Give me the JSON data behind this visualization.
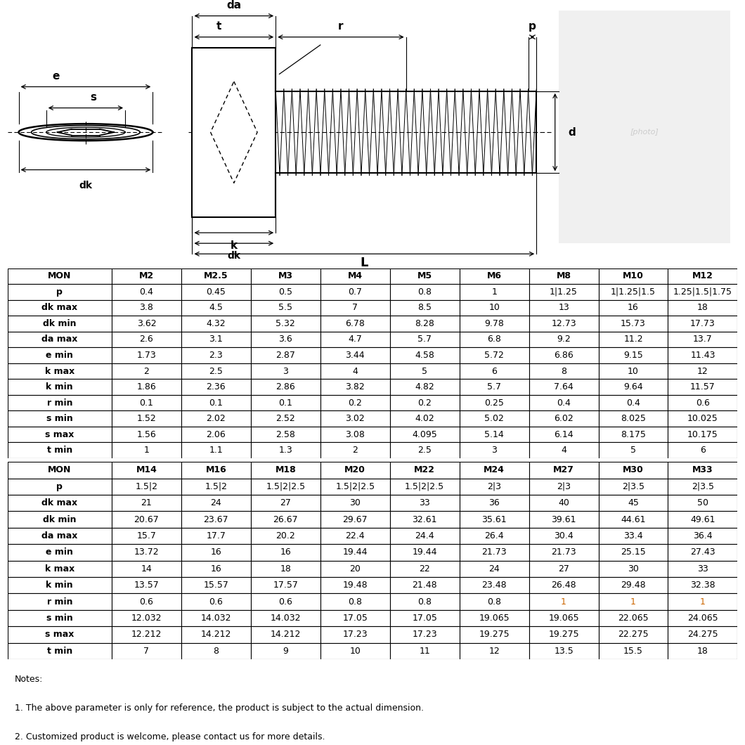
{
  "table1_headers": [
    "MON",
    "M2",
    "M2.5",
    "M3",
    "M4",
    "M5",
    "M6",
    "M8",
    "M10",
    "M12"
  ],
  "table1_rows": [
    [
      "p",
      "0.4",
      "0.45",
      "0.5",
      "0.7",
      "0.8",
      "1",
      "1|1.25",
      "1|1.25|1.5",
      "1.25|1.5|1.75"
    ],
    [
      "dk max",
      "3.8",
      "4.5",
      "5.5",
      "7",
      "8.5",
      "10",
      "13",
      "16",
      "18"
    ],
    [
      "dk min",
      "3.62",
      "4.32",
      "5.32",
      "6.78",
      "8.28",
      "9.78",
      "12.73",
      "15.73",
      "17.73"
    ],
    [
      "da max",
      "2.6",
      "3.1",
      "3.6",
      "4.7",
      "5.7",
      "6.8",
      "9.2",
      "11.2",
      "13.7"
    ],
    [
      "e min",
      "1.73",
      "2.3",
      "2.87",
      "3.44",
      "4.58",
      "5.72",
      "6.86",
      "9.15",
      "11.43"
    ],
    [
      "k max",
      "2",
      "2.5",
      "3",
      "4",
      "5",
      "6",
      "8",
      "10",
      "12"
    ],
    [
      "k min",
      "1.86",
      "2.36",
      "2.86",
      "3.82",
      "4.82",
      "5.7",
      "7.64",
      "9.64",
      "11.57"
    ],
    [
      "r min",
      "0.1",
      "0.1",
      "0.1",
      "0.2",
      "0.2",
      "0.25",
      "0.4",
      "0.4",
      "0.6"
    ],
    [
      "s min",
      "1.52",
      "2.02",
      "2.52",
      "3.02",
      "4.02",
      "5.02",
      "6.02",
      "8.025",
      "10.025"
    ],
    [
      "s max",
      "1.56",
      "2.06",
      "2.58",
      "3.08",
      "4.095",
      "5.14",
      "6.14",
      "8.175",
      "10.175"
    ],
    [
      "t min",
      "1",
      "1.1",
      "1.3",
      "2",
      "2.5",
      "3",
      "4",
      "5",
      "6"
    ]
  ],
  "table2_headers": [
    "MON",
    "M14",
    "M16",
    "M18",
    "M20",
    "M22",
    "M24",
    "M27",
    "M30",
    "M33"
  ],
  "table2_rows": [
    [
      "p",
      "1.5|2",
      "1.5|2",
      "1.5|2|2.5",
      "1.5|2|2.5",
      "1.5|2|2.5",
      "2|3",
      "2|3",
      "2|3.5",
      "2|3.5"
    ],
    [
      "dk max",
      "21",
      "24",
      "27",
      "30",
      "33",
      "36",
      "40",
      "45",
      "50"
    ],
    [
      "dk min",
      "20.67",
      "23.67",
      "26.67",
      "29.67",
      "32.61",
      "35.61",
      "39.61",
      "44.61",
      "49.61"
    ],
    [
      "da max",
      "15.7",
      "17.7",
      "20.2",
      "22.4",
      "24.4",
      "26.4",
      "30.4",
      "33.4",
      "36.4"
    ],
    [
      "e min",
      "13.72",
      "16",
      "16",
      "19.44",
      "19.44",
      "21.73",
      "21.73",
      "25.15",
      "27.43"
    ],
    [
      "k max",
      "14",
      "16",
      "18",
      "20",
      "22",
      "24",
      "27",
      "30",
      "33"
    ],
    [
      "k min",
      "13.57",
      "15.57",
      "17.57",
      "19.48",
      "21.48",
      "23.48",
      "26.48",
      "29.48",
      "32.38"
    ],
    [
      "r min",
      "0.6",
      "0.6",
      "0.6",
      "0.8",
      "0.8",
      "0.8",
      "1",
      "1",
      "1"
    ],
    [
      "s min",
      "12.032",
      "14.032",
      "14.032",
      "17.05",
      "17.05",
      "19.065",
      "19.065",
      "22.065",
      "24.065"
    ],
    [
      "s max",
      "12.212",
      "14.212",
      "14.212",
      "17.23",
      "17.23",
      "19.275",
      "19.275",
      "22.275",
      "24.275"
    ],
    [
      "t min",
      "7",
      "8",
      "9",
      "10",
      "11",
      "12",
      "13.5",
      "15.5",
      "18"
    ]
  ],
  "notes": [
    "Notes:",
    "1. The above parameter is only for reference, the product is subject to the actual dimension.",
    "2. Customized product is welcome, please contact us for more details."
  ],
  "r_min_highlight_color": "#cc6600"
}
